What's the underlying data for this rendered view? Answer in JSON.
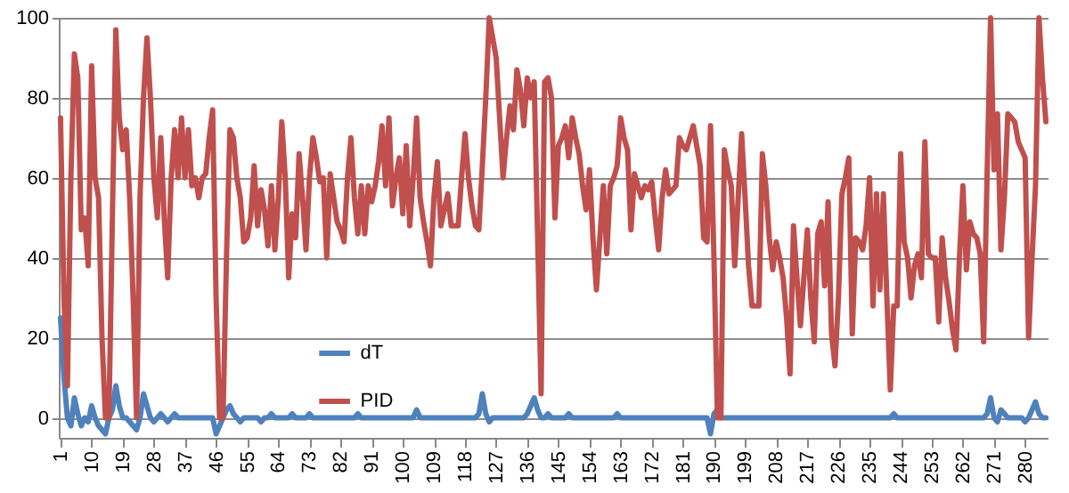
{
  "chart_data": {
    "type": "line",
    "categories": [
      "1",
      null,
      null,
      null,
      null,
      null,
      null,
      null,
      null,
      "10",
      null,
      null,
      null,
      null,
      null,
      null,
      null,
      null,
      "19",
      null,
      null,
      null,
      null,
      null,
      null,
      null,
      null,
      "28",
      null,
      null,
      null,
      null,
      null,
      null,
      null,
      null,
      "37",
      null,
      null,
      null,
      null,
      null,
      null,
      null,
      null,
      "46",
      null,
      null,
      null,
      null,
      null,
      null,
      null,
      null,
      "55",
      null,
      null,
      null,
      null,
      null,
      null,
      null,
      null,
      "64",
      null,
      null,
      null,
      null,
      null,
      null,
      null,
      null,
      "73",
      null,
      null,
      null,
      null,
      null,
      null,
      null,
      null,
      "82",
      null,
      null,
      null,
      null,
      null,
      null,
      null,
      null,
      "91",
      null,
      null,
      null,
      null,
      null,
      null,
      null,
      null,
      "100",
      null,
      null,
      null,
      null,
      null,
      null,
      null,
      null,
      "109",
      null,
      null,
      null,
      null,
      null,
      null,
      null,
      null,
      "118",
      null,
      null,
      null,
      null,
      null,
      null,
      null,
      null,
      "127",
      null,
      null,
      null,
      null,
      null,
      null,
      null,
      null,
      "136",
      null,
      null,
      null,
      null,
      null,
      null,
      null,
      null,
      "145",
      null,
      null,
      null,
      null,
      null,
      null,
      null,
      null,
      "154",
      null,
      null,
      null,
      null,
      null,
      null,
      null,
      null,
      "163",
      null,
      null,
      null,
      null,
      null,
      null,
      null,
      null,
      "172",
      null,
      null,
      null,
      null,
      null,
      null,
      null,
      null,
      "181",
      null,
      null,
      null,
      null,
      null,
      null,
      null,
      null,
      "190",
      null,
      null,
      null,
      null,
      null,
      null,
      null,
      null,
      "199",
      null,
      null,
      null,
      null,
      null,
      null,
      null,
      null,
      "208",
      null,
      null,
      null,
      null,
      null,
      null,
      null,
      null,
      "217",
      null,
      null,
      null,
      null,
      null,
      null,
      null,
      null,
      "226",
      null,
      null,
      null,
      null,
      null,
      null,
      null,
      null,
      "235",
      null,
      null,
      null,
      null,
      null,
      null,
      null,
      null,
      "244",
      null,
      null,
      null,
      null,
      null,
      null,
      null,
      null,
      "253",
      null,
      null,
      null,
      null,
      null,
      null,
      null,
      null,
      "262",
      null,
      null,
      null,
      null,
      null,
      null,
      null,
      null,
      "271",
      null,
      null,
      null,
      null,
      null,
      null,
      null,
      null,
      "280",
      null,
      null,
      null,
      null,
      null,
      null
    ],
    "series": [
      {
        "name": "dT",
        "color": "#4f81bd",
        "values": [
          25,
          10,
          0,
          -2,
          5,
          1,
          -2,
          0,
          -1,
          3,
          0,
          -2,
          -3,
          -4,
          0,
          2,
          8,
          3,
          0,
          0,
          -1,
          -2,
          -3,
          0,
          6,
          3,
          0,
          -1,
          0,
          1,
          0,
          -1,
          0,
          1,
          0,
          0,
          0,
          0,
          0,
          0,
          0,
          0,
          0,
          0,
          0,
          -4,
          -2,
          0,
          2,
          3,
          1,
          0,
          -1,
          0,
          0,
          0,
          0,
          0,
          -1,
          0,
          0,
          1,
          0,
          0,
          0,
          0,
          0,
          1,
          0,
          0,
          0,
          0,
          1,
          0,
          0,
          0,
          0,
          0,
          0,
          0,
          0,
          0,
          0,
          0,
          0,
          0,
          1,
          0,
          0,
          0,
          0,
          0,
          0,
          0,
          0,
          0,
          0,
          0,
          0,
          0,
          0,
          0,
          0,
          2,
          0,
          0,
          0,
          0,
          0,
          0,
          0,
          0,
          0,
          0,
          0,
          0,
          0,
          0,
          0,
          0,
          0,
          1,
          6,
          1,
          -1,
          0,
          0,
          0,
          0,
          0,
          0,
          0,
          0,
          0,
          0,
          1,
          3,
          5,
          2,
          0,
          0,
          1,
          0,
          0,
          0,
          0,
          0,
          1,
          0,
          0,
          0,
          0,
          0,
          0,
          0,
          0,
          0,
          0,
          0,
          0,
          0,
          1,
          0,
          0,
          0,
          0,
          0,
          0,
          0,
          0,
          0,
          0,
          0,
          0,
          0,
          0,
          0,
          0,
          0,
          0,
          0,
          0,
          0,
          0,
          0,
          0,
          0,
          0,
          -4,
          1,
          2,
          0,
          0,
          0,
          0,
          0,
          0,
          0,
          0,
          0,
          0,
          0,
          0,
          0,
          0,
          0,
          0,
          0,
          0,
          0,
          0,
          0,
          0,
          0,
          0,
          0,
          0,
          0,
          0,
          0,
          0,
          0,
          0,
          0,
          0,
          0,
          0,
          0,
          0,
          0,
          0,
          0,
          0,
          0,
          0,
          0,
          0,
          0,
          0,
          0,
          0,
          1,
          0,
          0,
          0,
          0,
          0,
          0,
          0,
          0,
          0,
          0,
          0,
          0,
          0,
          0,
          0,
          0,
          0,
          0,
          0,
          0,
          0,
          0,
          0,
          0,
          0,
          0,
          1,
          5,
          0,
          -1,
          2,
          1,
          0,
          0,
          0,
          0,
          0,
          -1,
          0,
          2,
          4,
          1,
          0,
          0
        ]
      },
      {
        "name": "PID",
        "color": "#c0504d",
        "values": [
          75,
          30,
          8,
          60,
          91,
          85,
          47,
          50,
          38,
          88,
          60,
          55,
          20,
          0,
          0,
          50,
          97,
          75,
          67,
          72,
          55,
          30,
          0,
          55,
          80,
          95,
          80,
          60,
          50,
          70,
          50,
          35,
          60,
          72,
          60,
          75,
          60,
          72,
          58,
          60,
          55,
          60,
          61,
          70,
          77,
          30,
          0,
          0,
          40,
          72,
          70,
          60,
          55,
          44,
          45,
          50,
          63,
          48,
          57,
          52,
          43,
          58,
          42,
          55,
          74,
          60,
          35,
          51,
          45,
          66,
          55,
          42,
          60,
          70,
          65,
          59,
          60,
          40,
          61,
          55,
          49,
          47,
          44,
          60,
          70,
          55,
          46,
          58,
          46,
          58,
          54,
          58,
          64,
          73,
          58,
          75,
          53,
          60,
          65,
          51,
          68,
          48,
          60,
          75,
          55,
          49,
          44,
          38,
          55,
          64,
          48,
          52,
          56,
          48,
          48,
          48,
          60,
          71,
          60,
          53,
          48,
          47,
          63,
          80,
          100,
          95,
          90,
          75,
          60,
          70,
          78,
          72,
          87,
          82,
          73,
          85,
          80,
          84,
          45,
          6,
          84,
          85,
          80,
          50,
          68,
          70,
          73,
          65,
          75,
          70,
          66,
          58,
          52,
          62,
          45,
          32,
          45,
          58,
          41,
          58,
          60,
          63,
          75,
          70,
          67,
          47,
          61,
          58,
          55,
          58,
          57,
          59,
          50,
          42,
          55,
          62,
          56,
          57,
          58,
          70,
          68,
          67,
          70,
          73,
          68,
          63,
          45,
          44,
          73,
          40,
          0,
          0,
          67,
          62,
          58,
          38,
          55,
          71,
          55,
          38,
          28,
          28,
          28,
          66,
          58,
          45,
          37,
          44,
          40,
          35,
          25,
          11,
          48,
          35,
          23,
          35,
          47,
          30,
          19,
          46,
          49,
          33,
          54,
          21,
          13,
          30,
          56,
          60,
          65,
          21,
          45,
          44,
          42,
          48,
          60,
          28,
          56,
          32,
          56,
          30,
          7,
          28,
          28,
          66,
          44,
          40,
          30,
          38,
          41,
          35,
          69,
          41,
          40,
          40,
          24,
          45,
          35,
          29,
          22,
          17,
          40,
          58,
          37,
          49,
          46,
          45,
          41,
          19,
          61,
          100,
          62,
          76,
          42,
          55,
          76,
          75,
          74,
          69,
          67,
          65,
          20,
          40,
          58,
          100,
          85,
          74
        ]
      }
    ],
    "ylim": [
      -5,
      100
    ],
    "yticks": [
      0,
      20,
      40,
      60,
      80,
      100
    ],
    "grid": "y",
    "legend": "bottom"
  }
}
